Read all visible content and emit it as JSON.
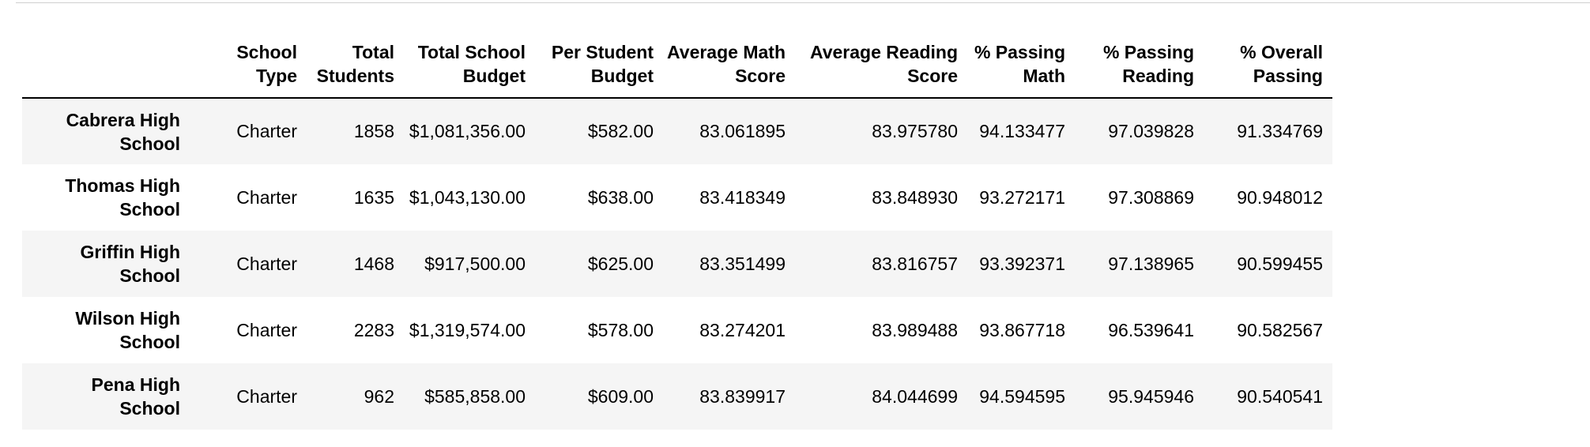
{
  "table": {
    "columns": [
      "School\nType",
      "Total\nStudents",
      "Total School\nBudget",
      "Per Student\nBudget",
      "Average Math\nScore",
      "Average Reading\nScore",
      "% Passing\nMath",
      "% Passing\nReading",
      "% Overall\nPassing"
    ],
    "rows": [
      {
        "school": "Cabrera High School",
        "type": "Charter",
        "total_students": "1858",
        "total_budget": "$1,081,356.00",
        "per_student_budget": "$582.00",
        "avg_math": "83.061895",
        "avg_reading": "83.975780",
        "pct_math": "94.133477",
        "pct_reading": "97.039828",
        "pct_overall": "91.334769"
      },
      {
        "school": "Thomas High School",
        "type": "Charter",
        "total_students": "1635",
        "total_budget": "$1,043,130.00",
        "per_student_budget": "$638.00",
        "avg_math": "83.418349",
        "avg_reading": "83.848930",
        "pct_math": "93.272171",
        "pct_reading": "97.308869",
        "pct_overall": "90.948012"
      },
      {
        "school": "Griffin High School",
        "type": "Charter",
        "total_students": "1468",
        "total_budget": "$917,500.00",
        "per_student_budget": "$625.00",
        "avg_math": "83.351499",
        "avg_reading": "83.816757",
        "pct_math": "93.392371",
        "pct_reading": "97.138965",
        "pct_overall": "90.599455"
      },
      {
        "school": "Wilson High School",
        "type": "Charter",
        "total_students": "2283",
        "total_budget": "$1,319,574.00",
        "per_student_budget": "$578.00",
        "avg_math": "83.274201",
        "avg_reading": "83.989488",
        "pct_math": "93.867718",
        "pct_reading": "96.539641",
        "pct_overall": "90.582567"
      },
      {
        "school": "Pena High School",
        "type": "Charter",
        "total_students": "962",
        "total_budget": "$585,858.00",
        "per_student_budget": "$609.00",
        "avg_math": "83.839917",
        "avg_reading": "84.044699",
        "pct_math": "94.594595",
        "pct_reading": "95.945946",
        "pct_overall": "90.540541"
      }
    ]
  },
  "colors": {
    "shaded_row": "#f5f5f5",
    "header_rule": "#000000"
  }
}
